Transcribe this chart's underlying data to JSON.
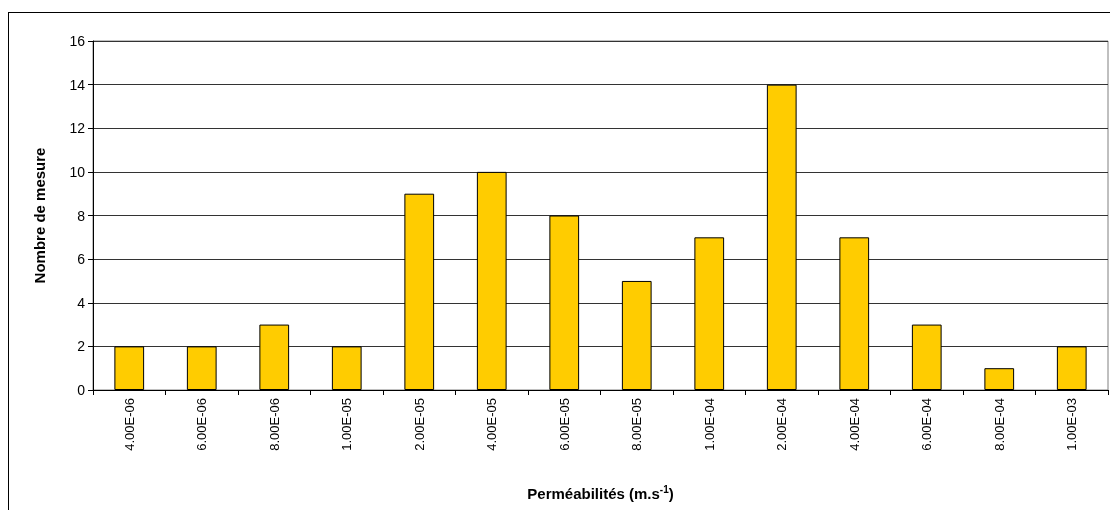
{
  "chart_data": {
    "type": "bar",
    "xlabel": "Perméabilités (m.s$^{-1}$)",
    "ylabel": "Nombre de mesure",
    "categories": [
      "4.00E-06",
      "6.00E-06",
      "8.00E-06",
      "1.00E-05",
      "2.00E-05",
      "4.00E-05",
      "6.00E-05",
      "8.00E-05",
      "1.00E-04",
      "2.00E-04",
      "4.00E-04",
      "6.00E-04",
      "8.00E-04",
      "1.00E-03"
    ],
    "values": [
      2,
      2,
      3,
      2,
      9,
      10,
      8,
      5,
      7,
      14,
      7,
      3,
      1,
      2
    ],
    "color": "#ffcc00",
    "ylim": [
      0,
      16
    ],
    "yticks": [
      0,
      2,
      4,
      6,
      8,
      10,
      12,
      14,
      16
    ],
    "grid": "y"
  }
}
